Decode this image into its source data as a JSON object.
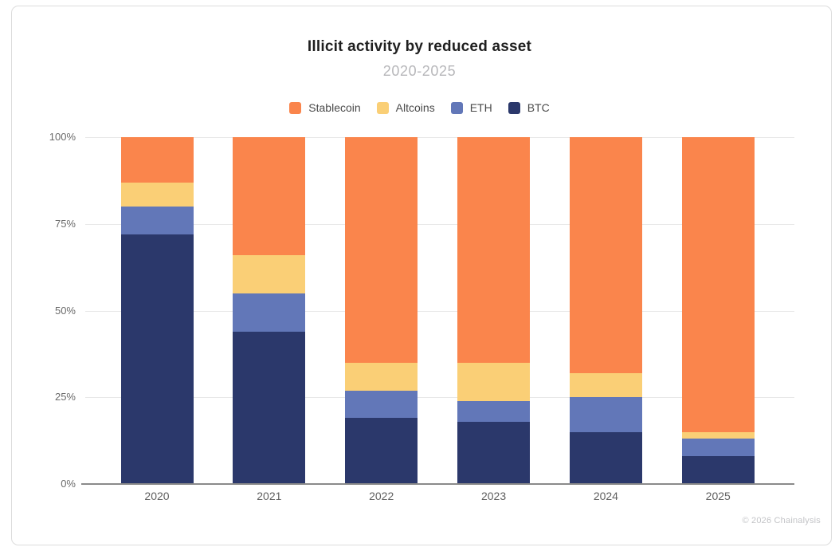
{
  "header": {
    "title": "Illicit activity by reduced asset",
    "subtitle": "2020-2025"
  },
  "legend": {
    "items": [
      {
        "label": "Stablecoin",
        "color": "#FA854C"
      },
      {
        "label": "Altcoins",
        "color": "#FACF76"
      },
      {
        "label": "ETH",
        "color": "#6277B8"
      },
      {
        "label": "BTC",
        "color": "#2B386B"
      }
    ]
  },
  "chart_data": {
    "type": "bar",
    "stacked": true,
    "stack_order": "bottom-to-top",
    "title": "Illicit activity by reduced asset",
    "subtitle": "2020-2025",
    "categories": [
      "2020",
      "2021",
      "2022",
      "2023",
      "2024",
      "2025"
    ],
    "series": [
      {
        "name": "BTC",
        "color": "#2B386B",
        "values": [
          72,
          44,
          19,
          18,
          15,
          8
        ]
      },
      {
        "name": "ETH",
        "color": "#6277B8",
        "values": [
          8,
          11,
          8,
          6,
          10,
          5
        ]
      },
      {
        "name": "Altcoins",
        "color": "#FACF76",
        "values": [
          7,
          11,
          8,
          11,
          7,
          2
        ]
      },
      {
        "name": "Stablecoin",
        "color": "#FA854C",
        "values": [
          13,
          34,
          65,
          65,
          68,
          85
        ]
      }
    ],
    "unit": "%",
    "ylim": [
      0,
      100
    ],
    "yticks": [
      "0%",
      "25%",
      "50%",
      "75%",
      "100%"
    ],
    "grid": true,
    "legend_position": "top",
    "colors": {
      "gridline": "#e8e8e8",
      "axis": "#8a8a8a"
    }
  },
  "footer": {
    "copyright": "© 2026 Chainalysis"
  }
}
